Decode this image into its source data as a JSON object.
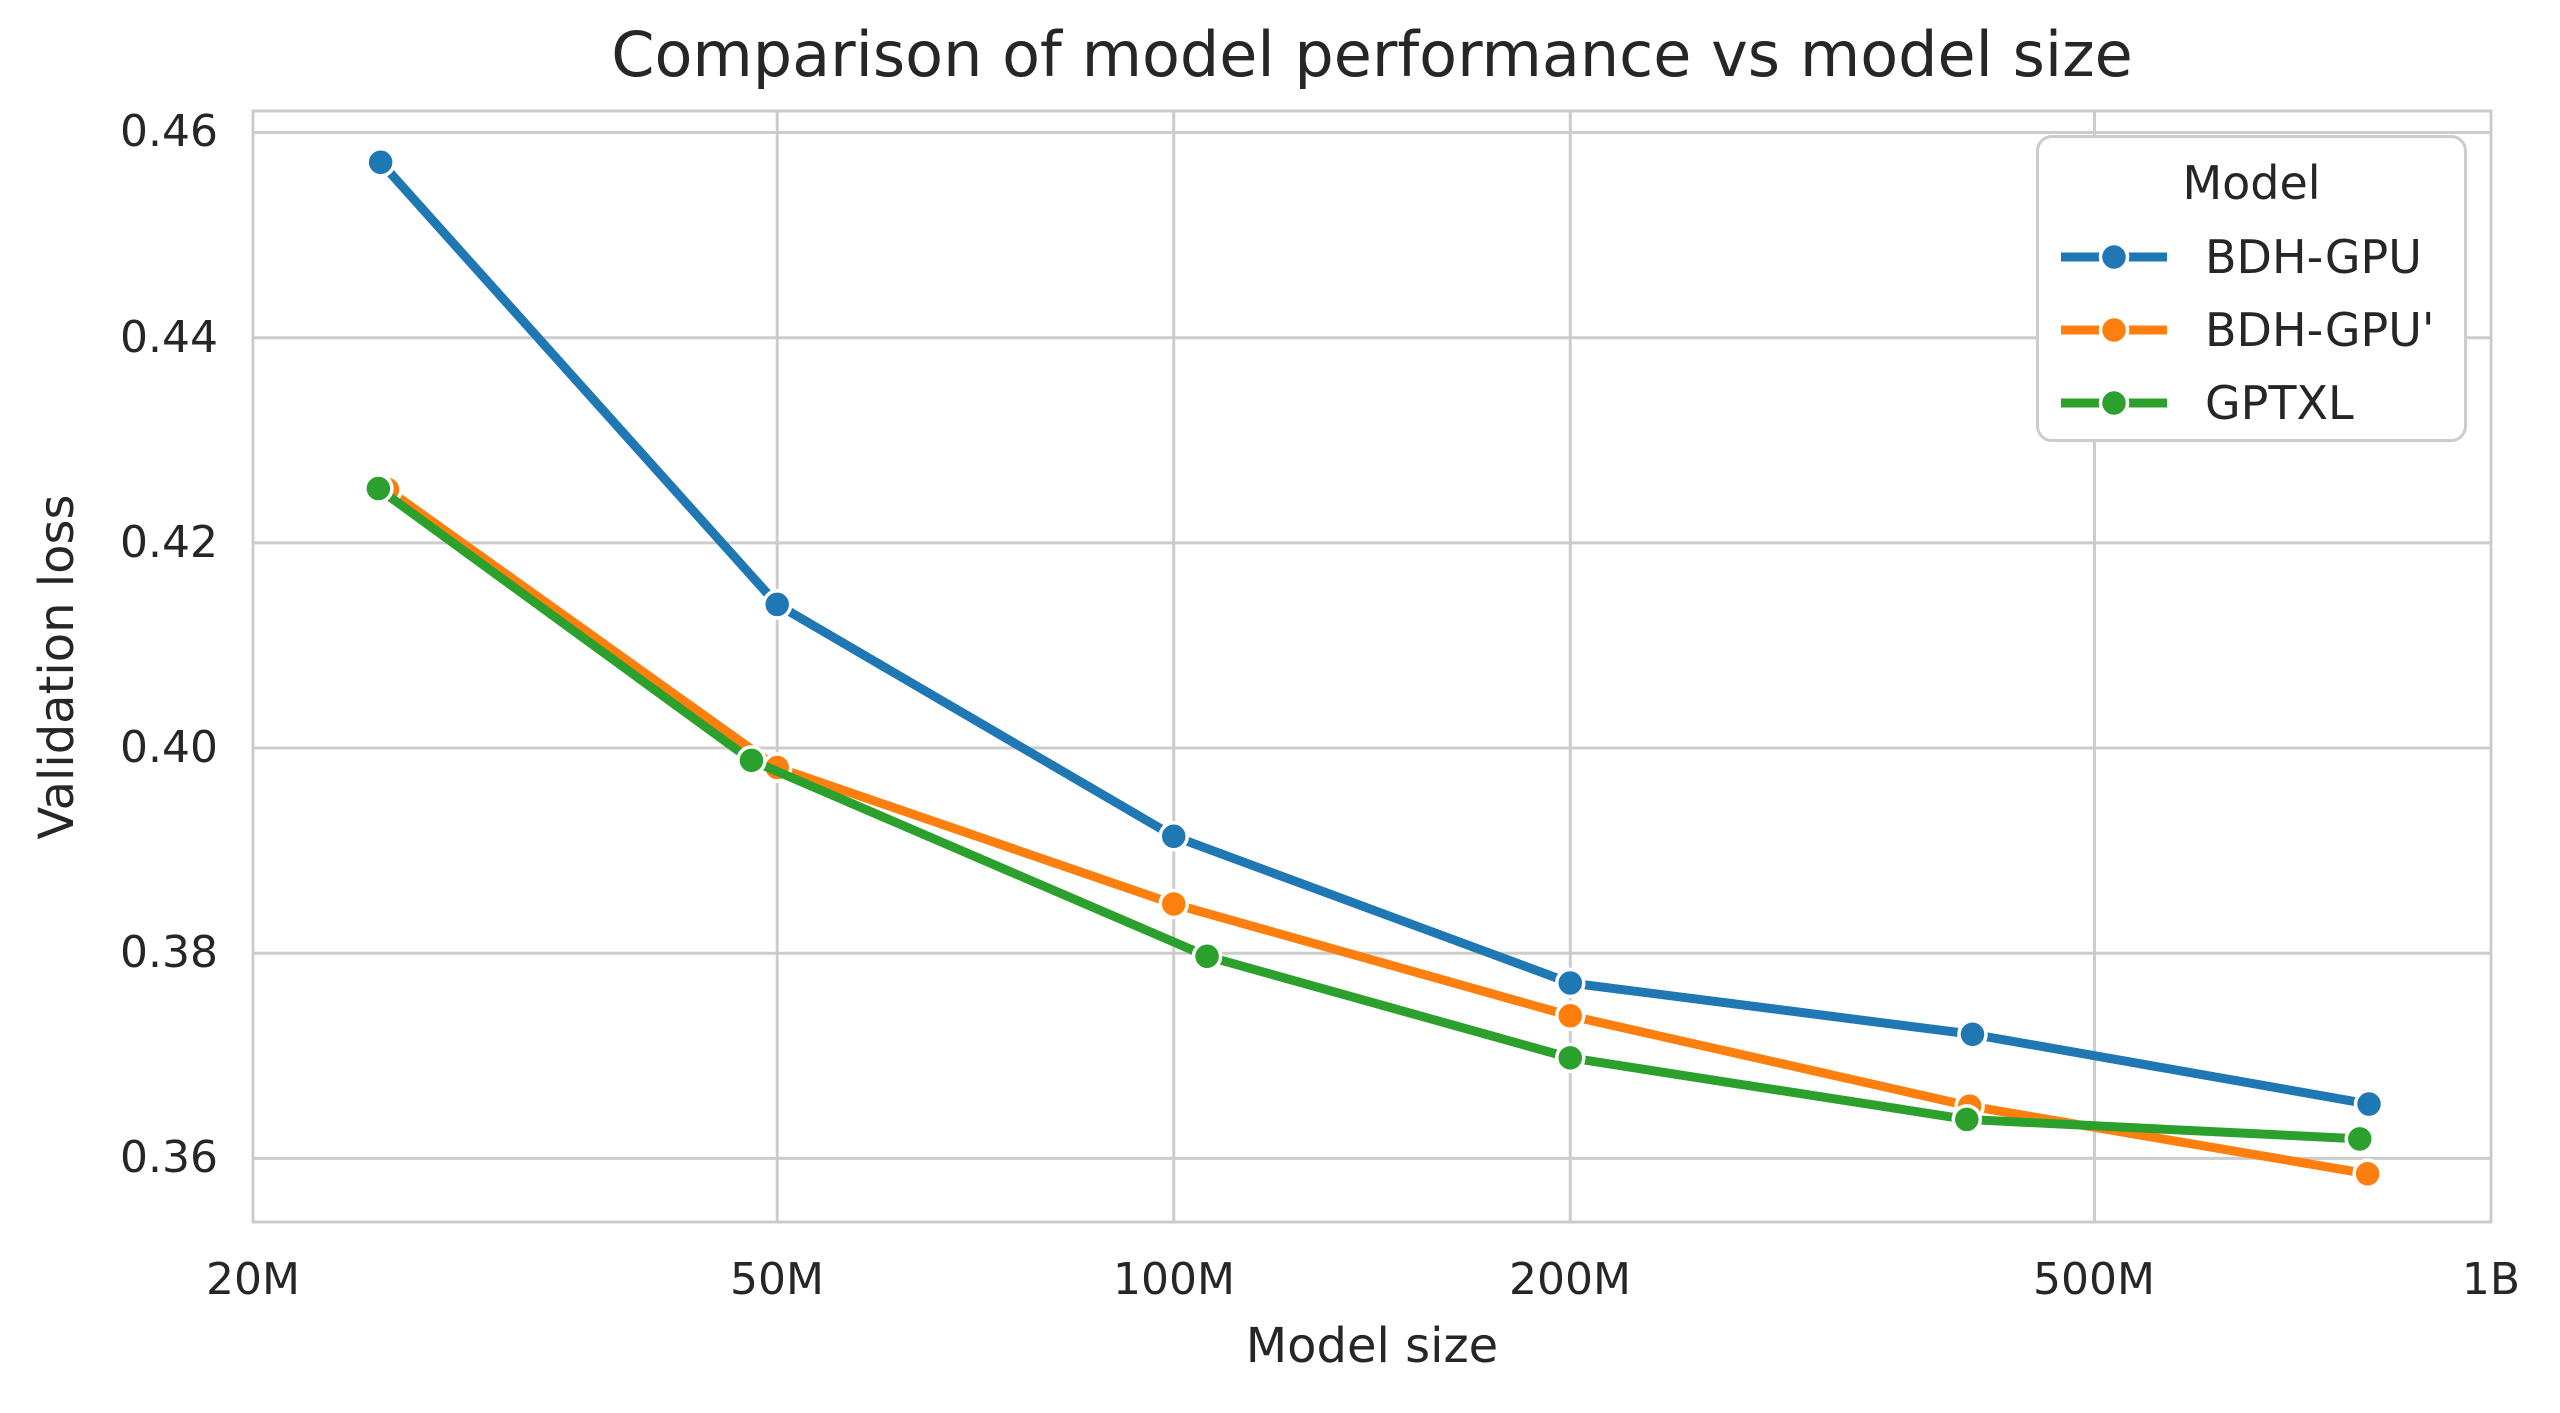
{
  "figure": {
    "background": "#ffffff",
    "text_color": "#262626",
    "grid_color": "#cccccc"
  },
  "chart_data": {
    "type": "line",
    "title": "Comparison of model performance vs model size",
    "xlabel": "Model size",
    "ylabel": "Validation loss",
    "x_scale": "log",
    "xlim": [
      20000000,
      1000000000
    ],
    "ylim": [
      0.3538,
      0.4621
    ],
    "grid": true,
    "legend": {
      "title": "Model",
      "position": "upper right"
    },
    "x_ticks": [
      20000000,
      50000000,
      100000000,
      200000000,
      500000000,
      1000000000
    ],
    "x_tick_labels": [
      "20M",
      "50M",
      "100M",
      "200M",
      "500M",
      "1B"
    ],
    "y_ticks": [
      0.46,
      0.44,
      0.42,
      0.4,
      0.38,
      0.36
    ],
    "y_tick_labels": [
      "0.46",
      "0.44",
      "0.42",
      "0.40",
      "0.38",
      "0.36"
    ],
    "series": [
      {
        "name": "BDH-GPU",
        "color": "#1f77b4",
        "x": [
          25000000,
          50000000,
          100000000,
          200000000,
          404000000,
          808000000
        ],
        "y": [
          0.4571,
          0.414,
          0.3914,
          0.3771,
          0.3721,
          0.3653
        ]
      },
      {
        "name": "BDH-GPU'",
        "color": "#ff7f0e",
        "x": [
          25300000,
          50000000,
          100000000,
          200000000,
          402000000,
          806000000
        ],
        "y": [
          0.4252,
          0.3981,
          0.3848,
          0.3739,
          0.3651,
          0.3585
        ]
      },
      {
        "name": "GPTXL",
        "color": "#2ca02c",
        "x": [
          24900000,
          47800000,
          106000000,
          200000000,
          400000000,
          795000000
        ],
        "y": [
          0.4253,
          0.3988,
          0.3797,
          0.3698,
          0.3638,
          0.3619
        ]
      }
    ]
  }
}
